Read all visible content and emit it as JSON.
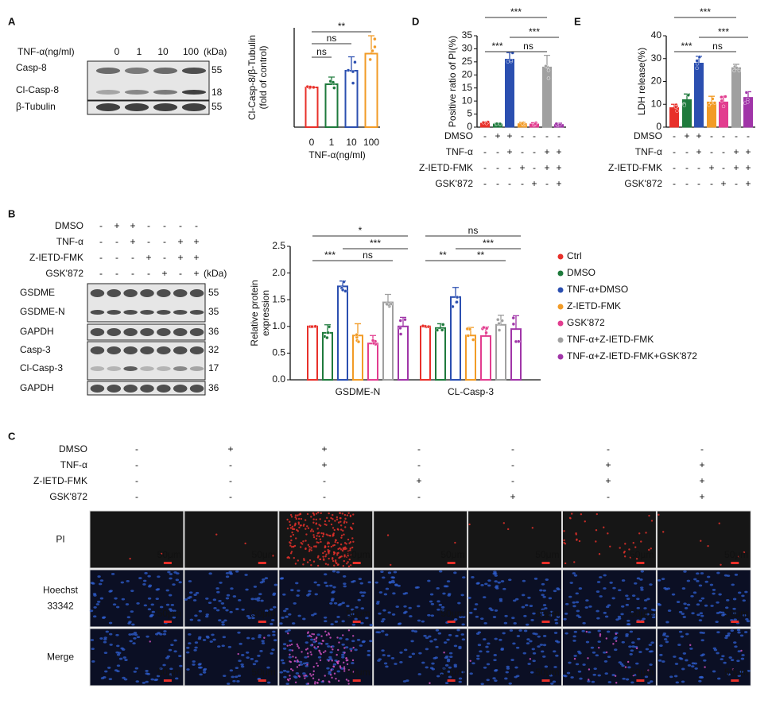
{
  "panel_labels": [
    "A",
    "B",
    "C",
    "D",
    "E"
  ],
  "blot_a": {
    "header": "TNF-α(ng/ml)",
    "lanes": [
      "0",
      "1",
      "10",
      "100"
    ],
    "unit": "(kDa)",
    "bands": [
      {
        "name": "Casp-8",
        "kda": 55
      },
      {
        "name": "Cl-Casp-8",
        "kda": 18
      },
      {
        "name": "β-Tubulin",
        "kda": 55
      }
    ]
  },
  "treatments": {
    "rows": [
      {
        "label": "DMSO",
        "signs": [
          "-",
          "+",
          "+",
          "-",
          "-",
          "-",
          "-"
        ]
      },
      {
        "label": "TNF-α",
        "signs": [
          "-",
          "-",
          "+",
          "-",
          "-",
          "+",
          "+"
        ]
      },
      {
        "label": "Z-IETD-FMK",
        "signs": [
          "-",
          "-",
          "-",
          "+",
          "-",
          "+",
          "+"
        ]
      },
      {
        "label": "GSK'872",
        "signs": [
          "-",
          "-",
          "-",
          "-",
          "+",
          "-",
          "+"
        ]
      }
    ]
  },
  "blot_b": {
    "unit": "(kDa)",
    "bands": [
      {
        "name": "GSDME",
        "kda": 55
      },
      {
        "name": "GSDME-N",
        "kda": 35
      },
      {
        "name": "GAPDH",
        "kda": 36
      },
      {
        "name": "Casp-3",
        "kda": 32
      },
      {
        "name": "Cl-Casp-3",
        "kda": 17
      },
      {
        "name": "GAPDH",
        "kda": 36
      }
    ]
  },
  "chart_data": [
    {
      "type": "bar",
      "bar_style": "outline",
      "ylabel": [
        "Cl-Casp-8/β-Tubulin",
        "(fold of control)"
      ],
      "xlabel": "TNF-α(ng/ml)",
      "categories": [
        "0",
        "1",
        "10",
        "100"
      ],
      "values": [
        1.0,
        1.08,
        1.42,
        1.85
      ],
      "errors": [
        0.02,
        0.18,
        0.35,
        0.45
      ],
      "colors": [
        "#e8302a",
        "#1e7a3c",
        "#2b4fb0",
        "#f29b26"
      ],
      "ylim": [
        0,
        2.5
      ],
      "annotations": [
        "**",
        "ns",
        "ns"
      ]
    },
    {
      "type": "grouped_bar",
      "bar_style": "outline",
      "ylabel": [
        "Relative protein",
        "expression"
      ],
      "categories": [
        "GSDME-N",
        "CL-Casp-3"
      ],
      "ylim": [
        0,
        2.5
      ],
      "yticks": [
        {
          "value": 0,
          "label": "0.0"
        },
        0.5,
        {
          "value": 1,
          "label": "1.0"
        },
        1.5,
        {
          "value": 2,
          "label": "2.0"
        },
        2.5
      ],
      "series": [
        {
          "name": "Ctrl",
          "color": "#e8302a",
          "values": [
            1.0,
            1.0
          ],
          "errors": [
            0.01,
            0.01
          ]
        },
        {
          "name": "DMSO",
          "color": "#1e7a3c",
          "values": [
            0.88,
            0.97
          ],
          "errors": [
            0.15,
            0.08
          ]
        },
        {
          "name": "TNF-α+DMSO",
          "color": "#2b4fb0",
          "values": [
            1.75,
            1.55
          ],
          "errors": [
            0.1,
            0.18
          ]
        },
        {
          "name": "Z-IETD-FMK",
          "color": "#f29b26",
          "values": [
            0.83,
            0.83
          ],
          "errors": [
            0.22,
            0.15
          ]
        },
        {
          "name": "GSK'872",
          "color": "#e23d8f",
          "values": [
            0.68,
            0.82
          ],
          "errors": [
            0.15,
            0.17
          ]
        },
        {
          "name": "TNF-α+Z-IETD-FMK",
          "color": "#a0a0a0",
          "values": [
            1.45,
            1.03
          ],
          "errors": [
            0.15,
            0.18
          ]
        },
        {
          "name": "TNF-α+Z-IETD-FMK+GSK'872",
          "color": "#a035a8",
          "values": [
            1.0,
            0.95
          ],
          "errors": [
            0.17,
            0.25
          ]
        }
      ],
      "annotations": [
        [
          "*",
          "***",
          "***",
          "ns"
        ],
        [
          "ns",
          "***",
          "**",
          "**"
        ]
      ]
    },
    {
      "type": "bar",
      "bar_style": "solid",
      "ylabel": [
        "Positive ratio of PI(%)"
      ],
      "values": [
        1.5,
        1.2,
        26,
        1.3,
        1.2,
        23,
        1.0
      ],
      "errors": [
        0.5,
        0.3,
        2.5,
        0.5,
        0.5,
        4.5,
        0.5
      ],
      "colors": [
        "#e8302a",
        "#1e7a3c",
        "#2b4fb0",
        "#f29b26",
        "#e23d8f",
        "#a0a0a0",
        "#a035a8"
      ],
      "ylim": [
        0,
        35
      ],
      "yticks": [
        0,
        5,
        10,
        15,
        20,
        25,
        30,
        35
      ],
      "annotations": [
        "***",
        "***",
        "***",
        "ns"
      ]
    },
    {
      "type": "bar",
      "bar_style": "solid",
      "ylabel": [
        "LDH release(%)"
      ],
      "values": [
        8.5,
        12,
        28,
        11,
        11,
        26,
        13
      ],
      "errors": [
        1.5,
        2.5,
        3,
        2.5,
        2.5,
        1.5,
        2.5
      ],
      "colors": [
        "#e8302a",
        "#1e7a3c",
        "#2b4fb0",
        "#f29b26",
        "#e23d8f",
        "#a0a0a0",
        "#a035a8"
      ],
      "ylim": [
        0,
        40
      ],
      "yticks": [
        0,
        10,
        20,
        30,
        40
      ],
      "annotations": [
        "***",
        "***",
        "***",
        "ns"
      ]
    }
  ],
  "imaging": {
    "scale_bar": "50μm",
    "rows": [
      {
        "lines": [
          "PI"
        ],
        "color": "#e8302a"
      },
      {
        "lines": [
          "Hoechst",
          "33342"
        ],
        "color": "#2b5fc0"
      },
      {
        "lines": [
          "Merge"
        ],
        "color": "#8a3aa8"
      }
    ]
  }
}
